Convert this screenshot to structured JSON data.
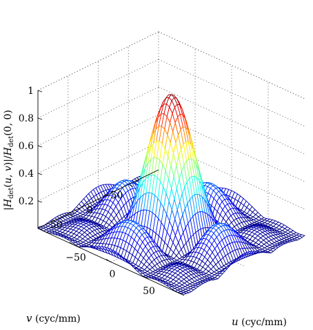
{
  "chart_data": {
    "type": "surface",
    "title": "",
    "zlabel": "|H_det(u,v)|/H_det(0,0)",
    "xlabel_var": "u",
    "xlabel_unit": "(cyc/mm)",
    "ylabel_var": "v",
    "ylabel_unit": "(cyc/mm)",
    "xlim": [
      -100,
      100
    ],
    "ylim": [
      -100,
      100
    ],
    "zlim": [
      0,
      1
    ],
    "ztick_labels": [
      "0.2",
      "0.4",
      "0.6",
      "0.8",
      "1"
    ],
    "ztick_values": [
      0.2,
      0.4,
      0.6,
      0.8,
      1
    ],
    "xtick_labels": [
      "−50",
      "0",
      "50"
    ],
    "xtick_values": [
      -50,
      0,
      50
    ],
    "ytick_labels": [
      "−50",
      "0",
      "50"
    ],
    "ytick_values": [
      -50,
      0,
      50
    ],
    "function": "|sinc(u/a)·sinc(v/a)|",
    "sinc_scale_cyc_per_mm": 45,
    "peak": 1.0,
    "colormap": "jet",
    "grid": true,
    "mesh_lines": 51
  }
}
